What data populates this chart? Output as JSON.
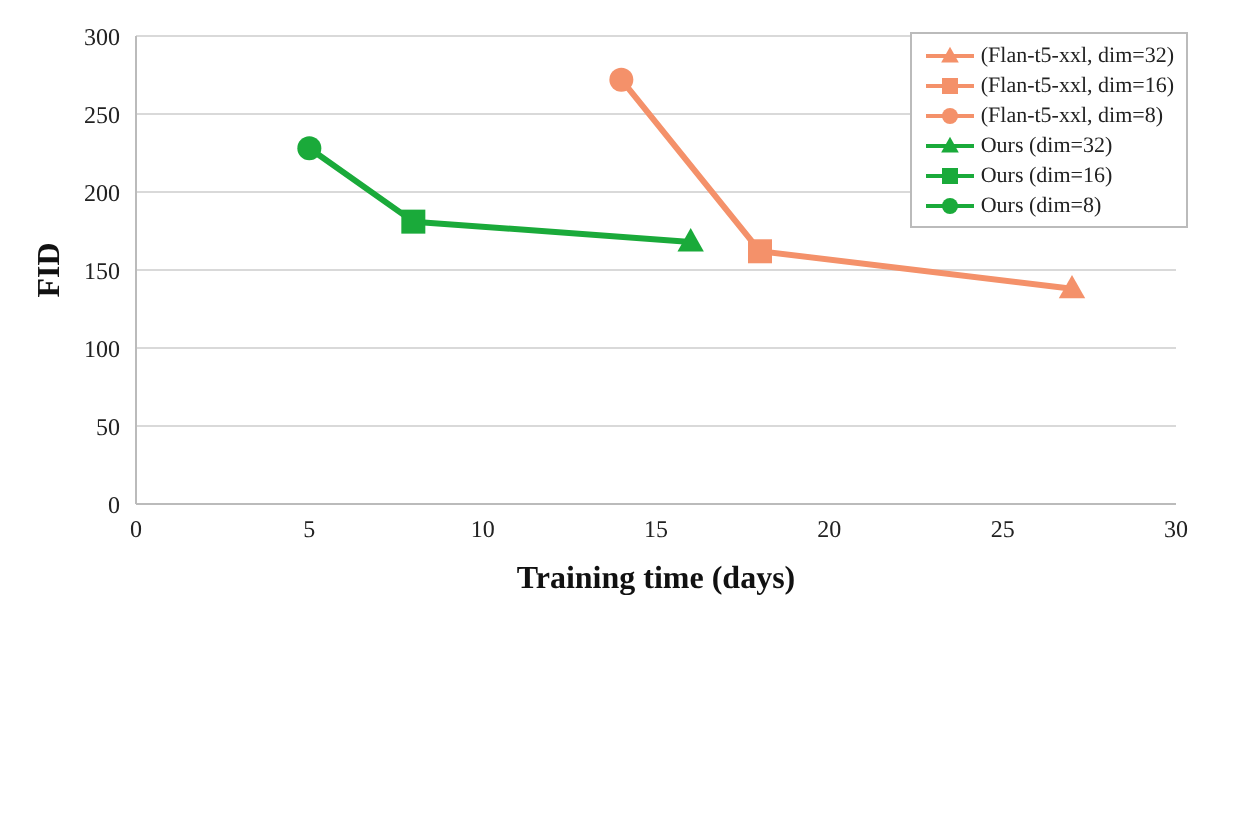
{
  "chart_data": {
    "type": "line",
    "xlabel": "Training time (days)",
    "ylabel": "FID",
    "xlim": [
      0,
      30
    ],
    "xticks": [
      0,
      5,
      10,
      15,
      20,
      25,
      30
    ],
    "ylim": [
      0,
      300
    ],
    "yticks": [
      0,
      50,
      100,
      150,
      200,
      250,
      300
    ],
    "grid": "y",
    "legend": "top right",
    "series": [
      {
        "color": "#f4916a",
        "marker": "none",
        "x": [
          14,
          18,
          27
        ],
        "values": [
          272,
          162,
          138
        ]
      },
      {
        "color": "#1aaa3a",
        "marker": "none",
        "x": [
          5,
          8,
          16
        ],
        "values": [
          228,
          181,
          168
        ]
      },
      {
        "type": "scatter",
        "name": "(Flan-t5-xxl, dim=32)",
        "color": "#f4916a",
        "marker": "triangle",
        "x": [
          27
        ],
        "values": [
          138
        ]
      },
      {
        "type": "scatter",
        "name": "(Flan-t5-xxl, dim=16)",
        "color": "#f4916a",
        "marker": "square",
        "x": [
          18
        ],
        "values": [
          162
        ]
      },
      {
        "type": "scatter",
        "name": "(Flan-t5-xxl, dim=8)",
        "color": "#f4916a",
        "marker": "circle",
        "x": [
          14
        ],
        "values": [
          272
        ]
      },
      {
        "type": "scatter",
        "name": "Ours (dim=32)",
        "color": "#1aaa3a",
        "marker": "triangle",
        "x": [
          16
        ],
        "values": [
          168
        ]
      },
      {
        "type": "scatter",
        "name": "Ours (dim=16)",
        "color": "#1aaa3a",
        "marker": "square",
        "x": [
          8
        ],
        "values": [
          181
        ]
      },
      {
        "type": "scatter",
        "name": "Ours (dim=8)",
        "color": "#1aaa3a",
        "marker": "circle",
        "x": [
          5
        ],
        "values": [
          228
        ]
      }
    ]
  }
}
